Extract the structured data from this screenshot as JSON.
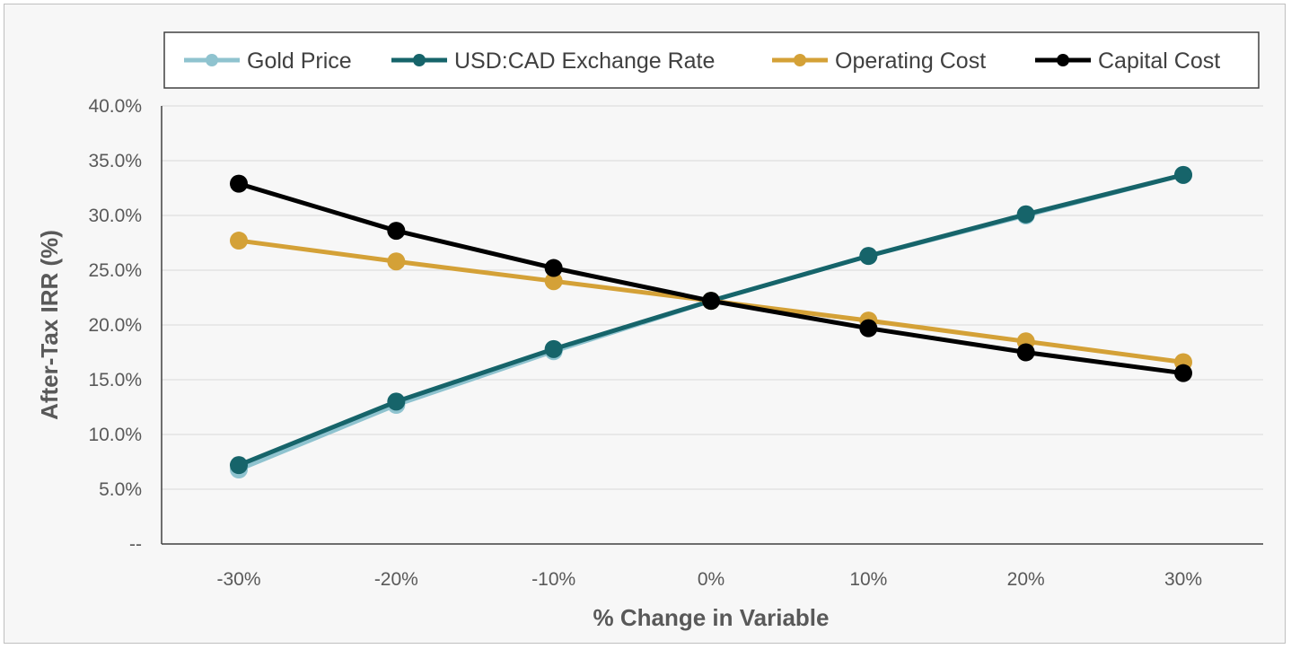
{
  "chart_data": {
    "type": "line",
    "title": "",
    "xlabel": "% Change in Variable",
    "ylabel": "After-Tax IRR (%)",
    "categories": [
      "-30%",
      "-20%",
      "-10%",
      "0%",
      "10%",
      "20%",
      "30%"
    ],
    "ylim": [
      0,
      40
    ],
    "yticks": [
      0,
      5,
      10,
      15,
      20,
      25,
      30,
      35,
      40
    ],
    "ytick_labels": [
      "--",
      "5.0%",
      "10.0%",
      "15.0%",
      "20.0%",
      "25.0%",
      "30.0%",
      "35.0%",
      "40.0%"
    ],
    "grid": "horizontal",
    "legend_position": "top",
    "series": [
      {
        "name": "Gold Price",
        "color": "#8fc3cf",
        "values": [
          6.8,
          12.7,
          17.6,
          22.2,
          26.3,
          30.0,
          33.7
        ]
      },
      {
        "name": "USD:CAD Exchange Rate",
        "color": "#16646a",
        "values": [
          7.2,
          13.0,
          17.8,
          22.2,
          26.3,
          30.1,
          33.7
        ]
      },
      {
        "name": "Operating Cost",
        "color": "#d4a137",
        "values": [
          27.7,
          25.8,
          24.0,
          22.2,
          20.4,
          18.5,
          16.6
        ]
      },
      {
        "name": "Capital Cost",
        "color": "#000000",
        "values": [
          32.9,
          28.6,
          25.2,
          22.2,
          19.7,
          17.5,
          15.6
        ]
      }
    ]
  }
}
